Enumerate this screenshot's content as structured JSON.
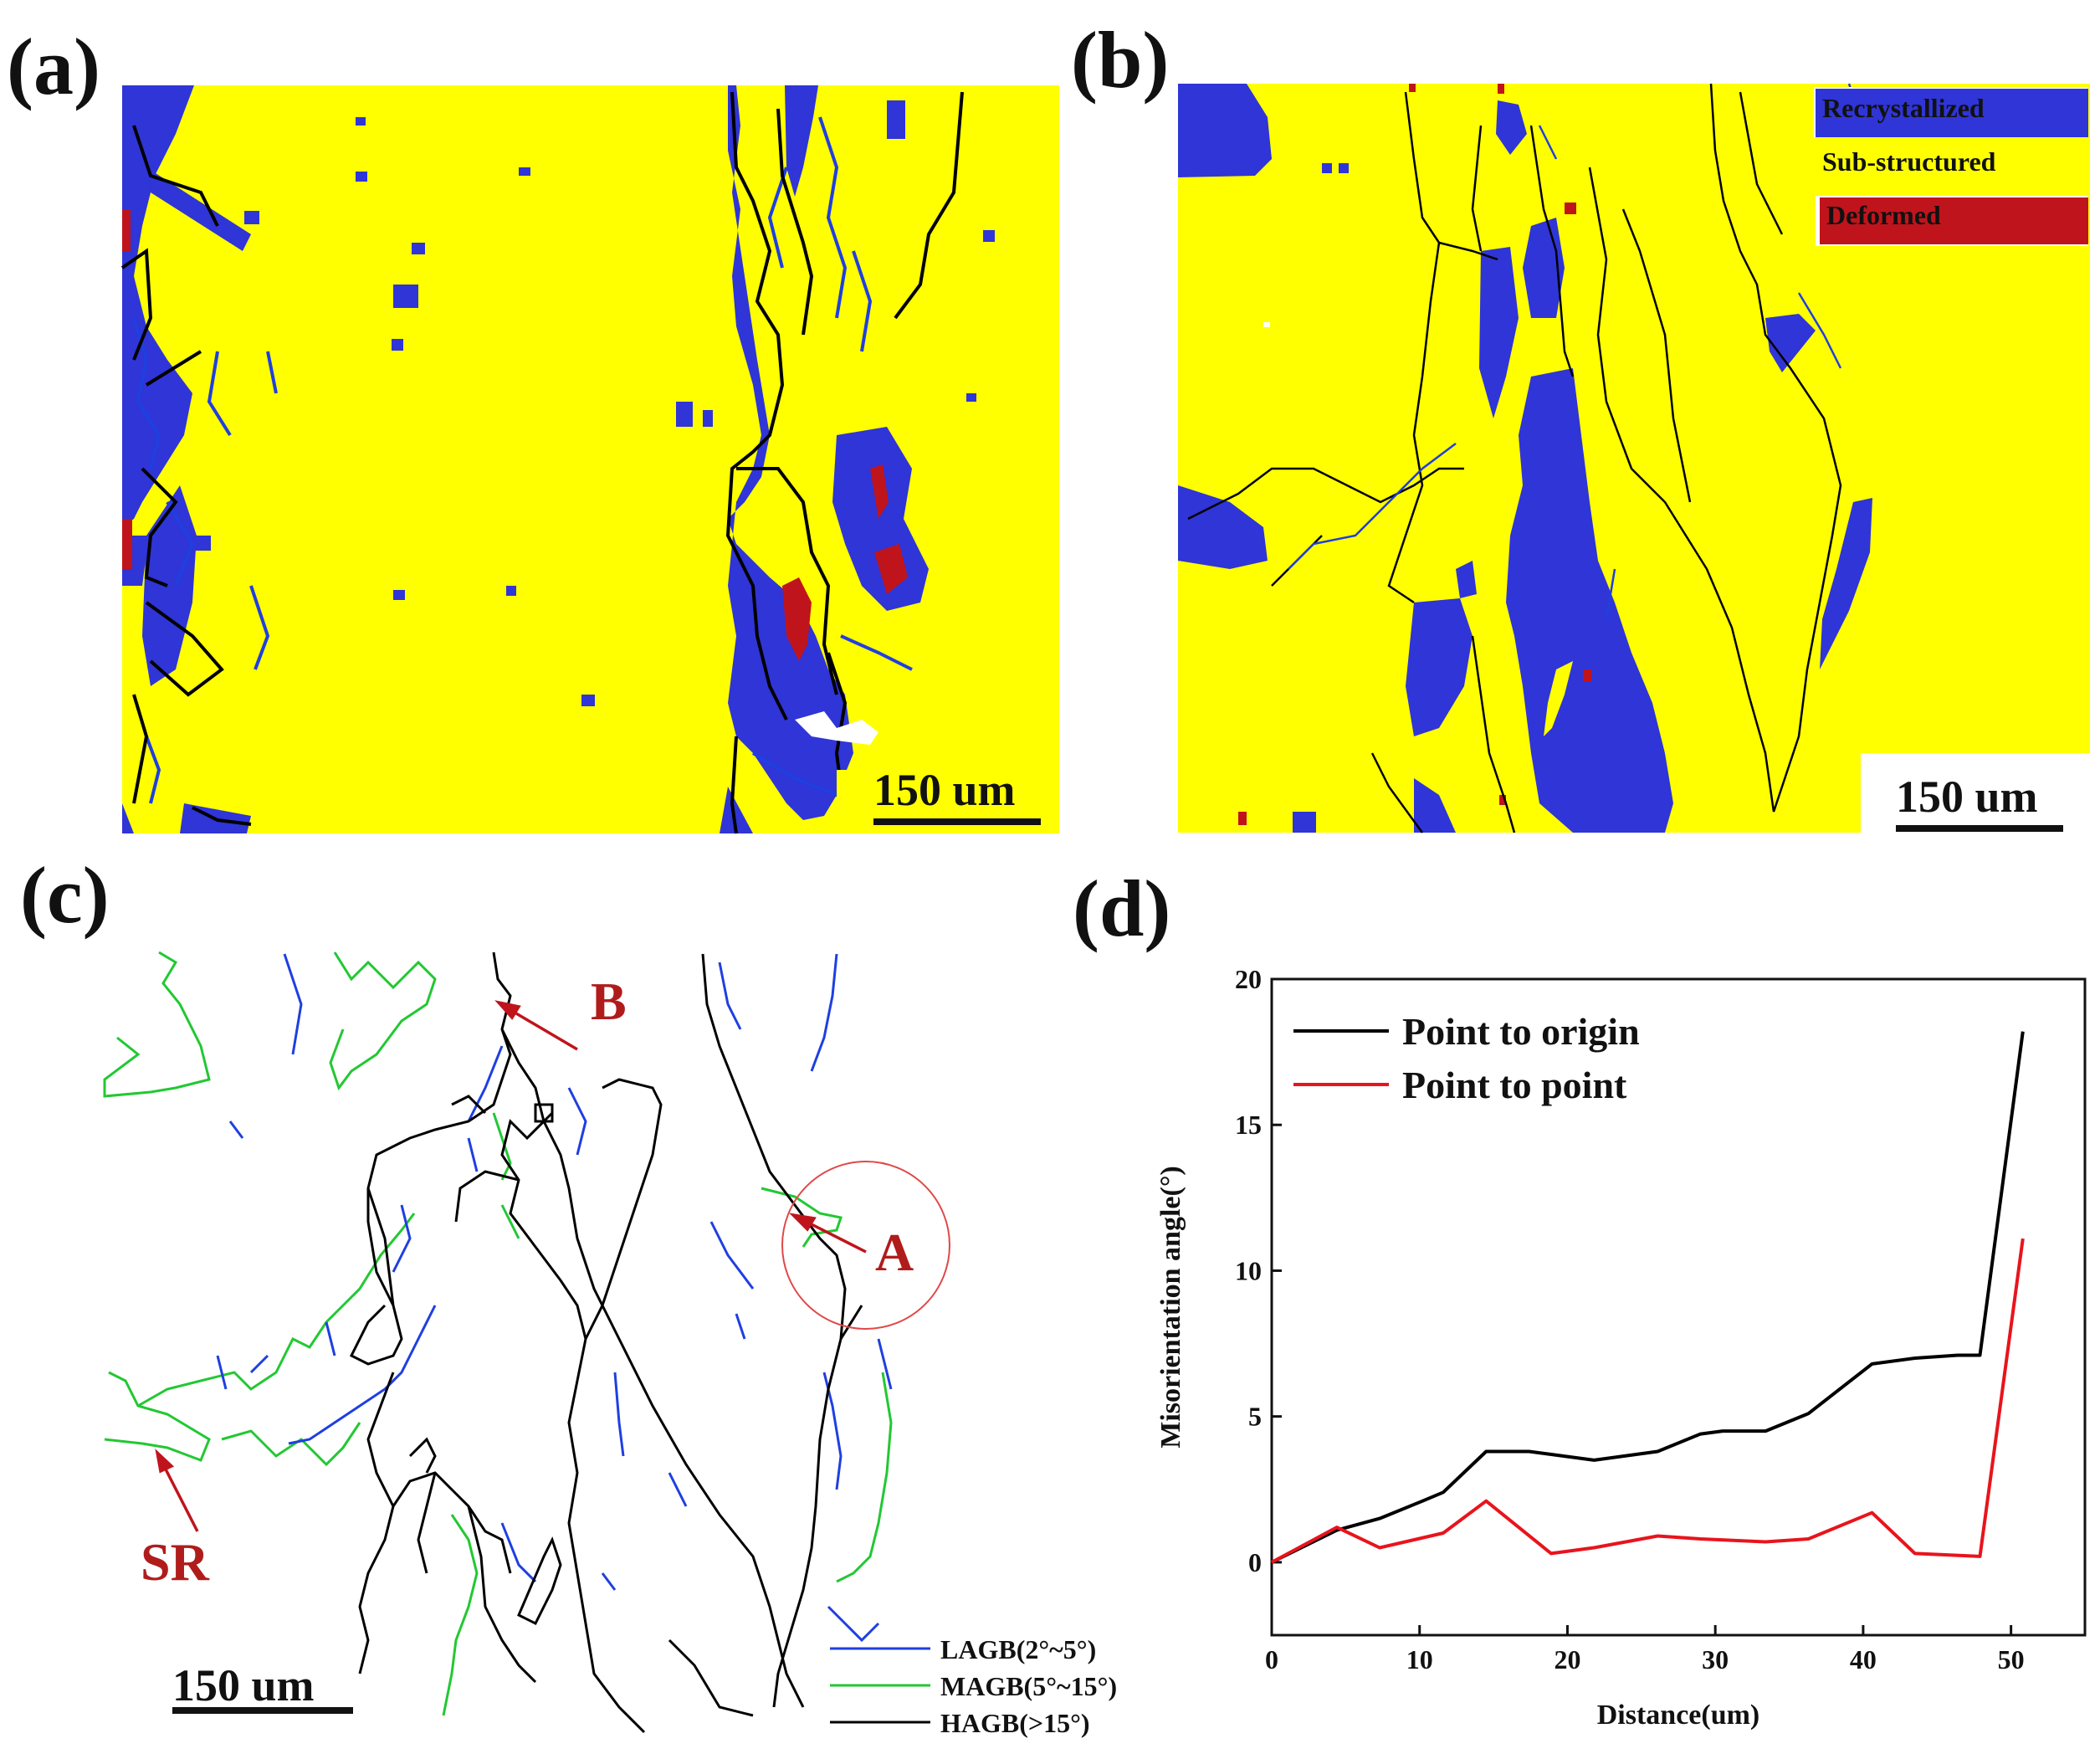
{
  "panels": {
    "a": {
      "label": "(a)",
      "scale_bar": "150 um"
    },
    "b": {
      "label": "(b)",
      "scale_bar": "150 um",
      "legend": [
        {
          "name": "Recrystallized",
          "color": "#2f35d6"
        },
        {
          "name": "Sub-structured",
          "color": "#ffff00"
        },
        {
          "name": "Deformed",
          "color": "#c0141c"
        }
      ]
    },
    "c": {
      "label": "(c)",
      "scale_bar": "150 um",
      "annotations": {
        "A": "A",
        "B": "B",
        "SR": "SR"
      },
      "legend": [
        {
          "name": "LAGB(2°~5°)",
          "color": "#1f3fe0"
        },
        {
          "name": "MAGB(5°~15°)",
          "color": "#22c832"
        },
        {
          "name": "HAGB(>15°)",
          "color": "#000000"
        }
      ]
    },
    "d": {
      "label": "(d)"
    }
  },
  "colors": {
    "recrystallized": "#2f35d6",
    "substructured": "#ffff00",
    "deformed": "#c0141c",
    "annot": "#b01c1c"
  },
  "chart_data": {
    "type": "line",
    "title": "",
    "xlabel": "Distance(um)",
    "ylabel": "Misorientation angle(°)",
    "xlim": [
      0,
      55
    ],
    "ylim": [
      -2.5,
      20
    ],
    "xticks": [
      0,
      10,
      20,
      30,
      40,
      50
    ],
    "yticks": [
      0,
      5,
      10,
      15,
      20
    ],
    "legend_position": "top-left",
    "series": [
      {
        "name": "Point to origin",
        "color": "#000000",
        "x": [
          0,
          4.4,
          7.3,
          10.2,
          11.6,
          14.5,
          17.4,
          18.9,
          21.8,
          26.1,
          29.0,
          30.5,
          33.4,
          36.3,
          40.6,
          43.5,
          46.4,
          47.9,
          50.8
        ],
        "y": [
          0,
          1.1,
          1.5,
          2.1,
          2.4,
          3.8,
          3.8,
          3.7,
          3.5,
          3.8,
          4.4,
          4.5,
          4.5,
          5.1,
          6.8,
          7.0,
          7.1,
          7.1,
          18.2
        ]
      },
      {
        "name": "Point to point",
        "color": "#e8141c",
        "x": [
          0,
          4.4,
          7.3,
          11.6,
          14.5,
          18.9,
          21.8,
          26.1,
          29.0,
          33.4,
          36.3,
          40.6,
          43.5,
          47.9,
          50.8
        ],
        "y": [
          0,
          1.2,
          0.5,
          1.0,
          2.1,
          0.3,
          0.5,
          0.9,
          0.8,
          0.7,
          0.8,
          1.7,
          0.3,
          0.2,
          11.1
        ]
      }
    ]
  }
}
